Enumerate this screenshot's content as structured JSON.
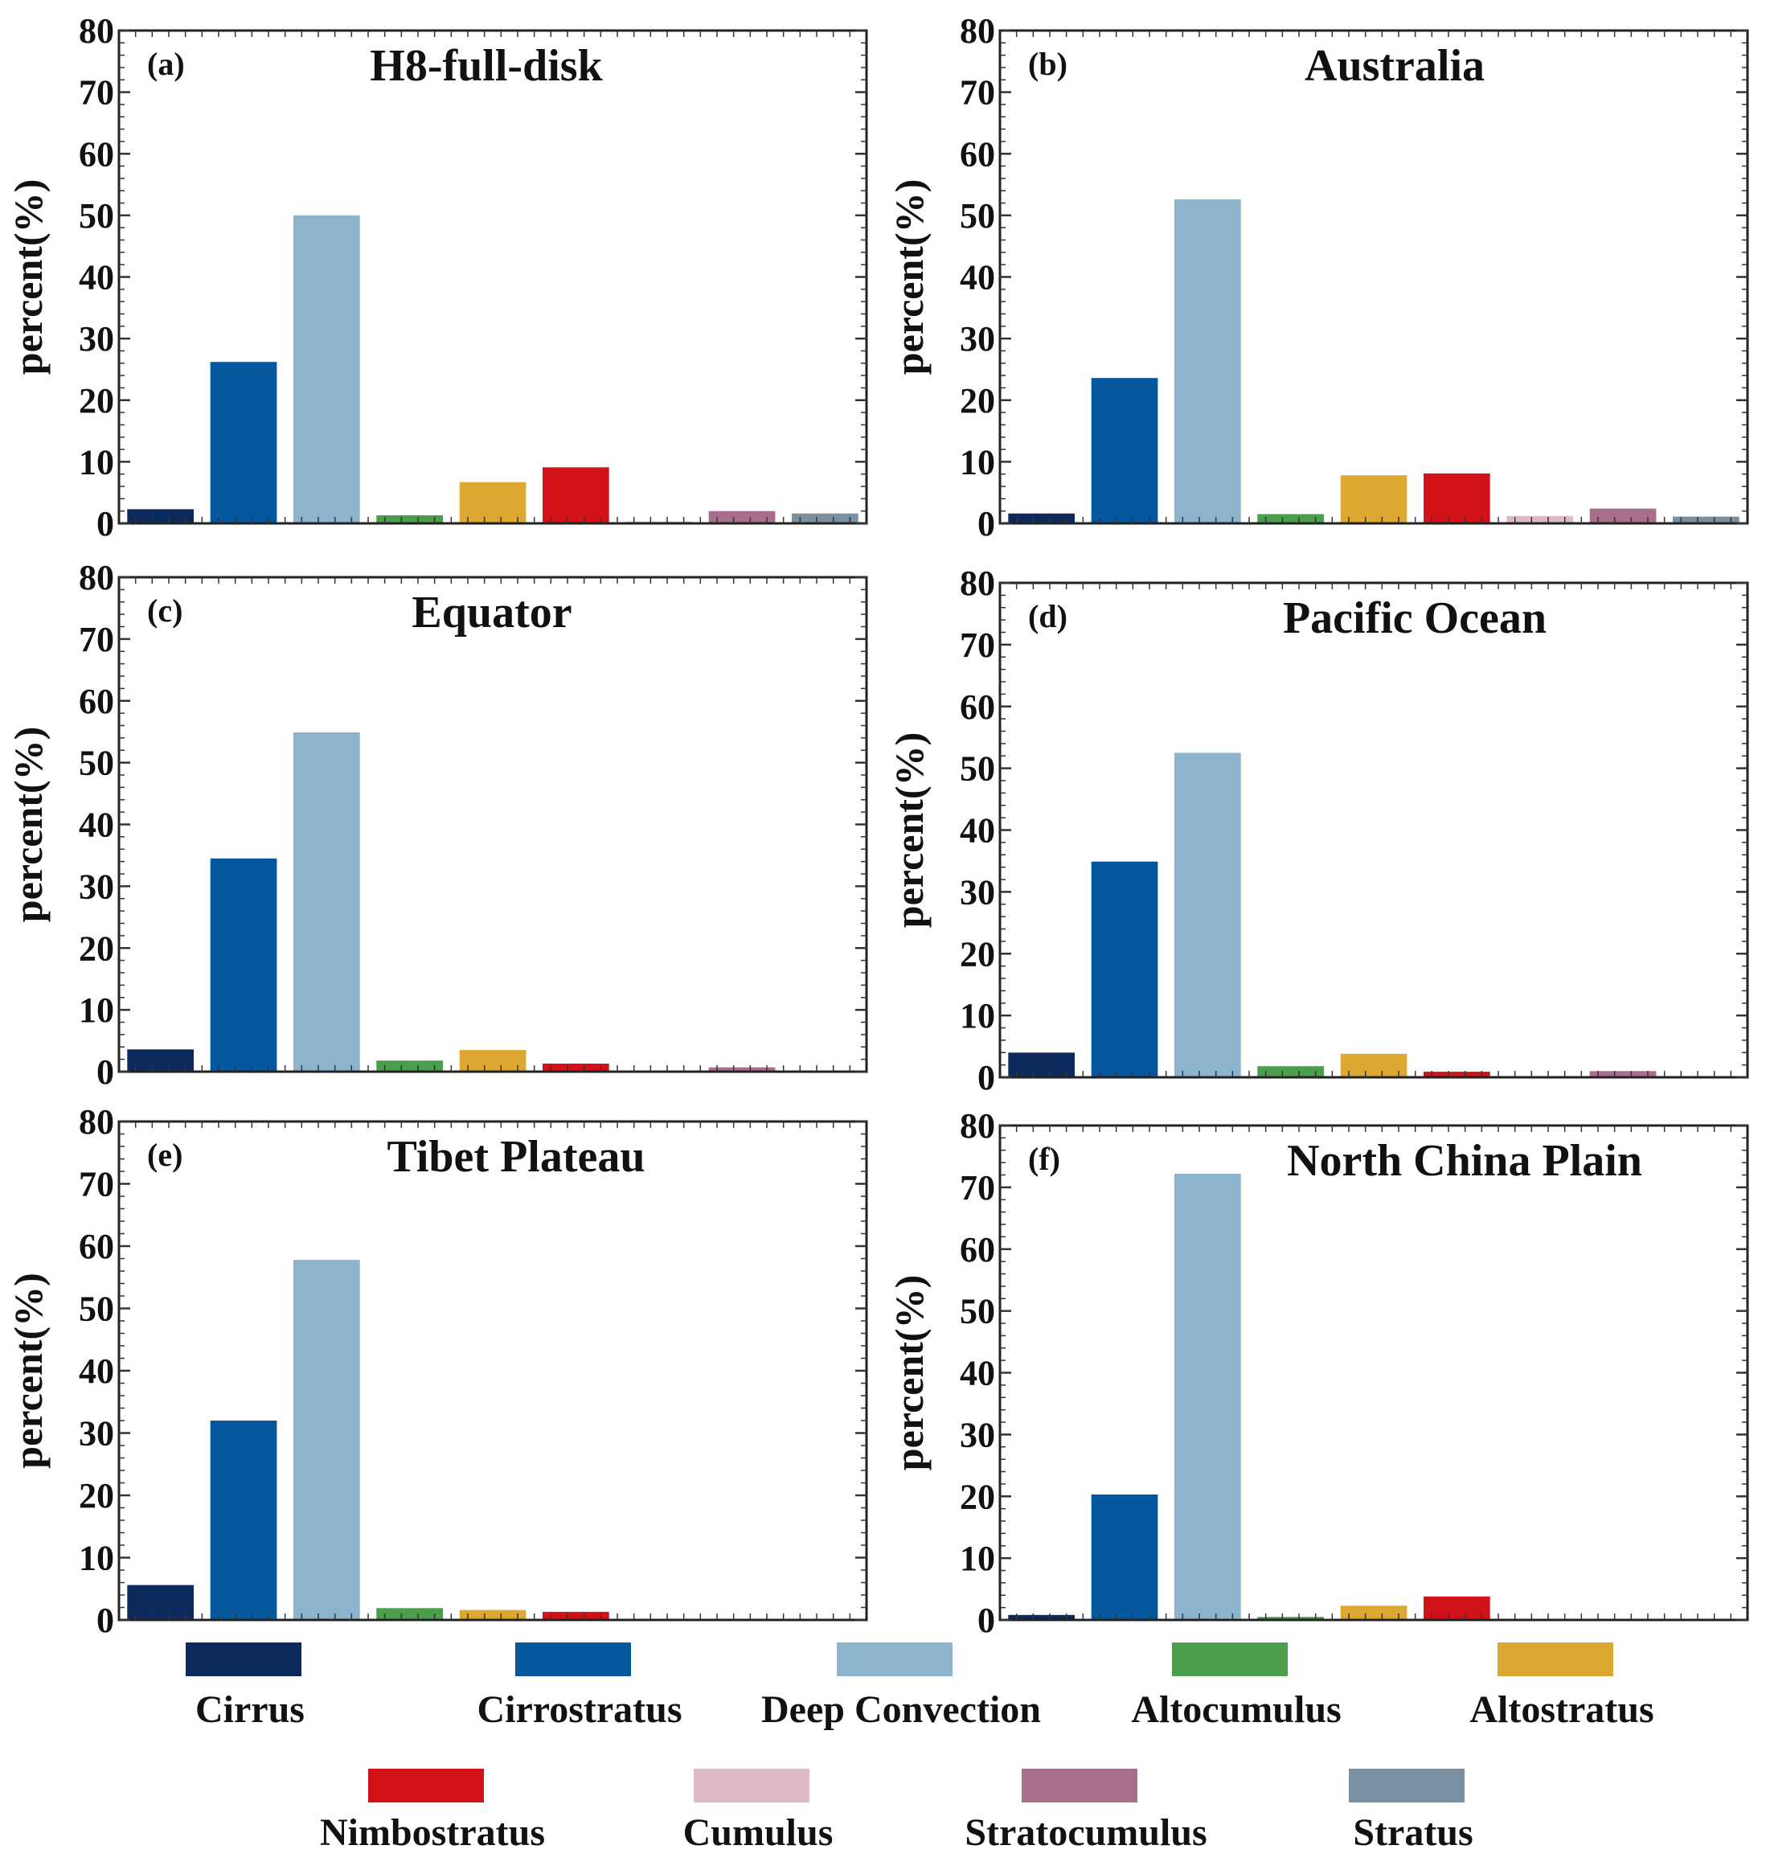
{
  "chart_data": [
    {
      "type": "bar",
      "panel_label": "(a)",
      "title": "H8-full-disk",
      "ylabel": "percent(%)",
      "xlabel": "",
      "ylim": [
        0,
        80
      ],
      "yticks": [
        "0",
        "10",
        "20",
        "30",
        "40",
        "50",
        "60",
        "70",
        "80"
      ],
      "categories": [
        "Cirrus",
        "Cirrostratus",
        "Deep Convection",
        "Altocumulus",
        "Altostratus",
        "Nimbostratus",
        "Cumulus",
        "Stratocumulus",
        "Stratus"
      ],
      "values": [
        2.3,
        26.2,
        50.0,
        1.3,
        6.7,
        9.1,
        0.3,
        2.0,
        1.6
      ]
    },
    {
      "type": "bar",
      "panel_label": "(b)",
      "title": "Australia",
      "ylabel": "percent(%)",
      "xlabel": "",
      "ylim": [
        0,
        80
      ],
      "yticks": [
        "0",
        "10",
        "20",
        "30",
        "40",
        "50",
        "60",
        "70",
        "80"
      ],
      "categories": [
        "Cirrus",
        "Cirrostratus",
        "Deep Convection",
        "Altocumulus",
        "Altostratus",
        "Nimbostratus",
        "Cumulus",
        "Stratocumulus",
        "Stratus"
      ],
      "values": [
        1.6,
        23.6,
        52.6,
        1.5,
        7.8,
        8.1,
        1.2,
        2.4,
        1.1
      ]
    },
    {
      "type": "bar",
      "panel_label": "(c)",
      "title": "Equator",
      "ylabel": "percent(%)",
      "xlabel": "",
      "ylim": [
        0,
        80
      ],
      "yticks": [
        "0",
        "10",
        "20",
        "30",
        "40",
        "50",
        "60",
        "70",
        "80"
      ],
      "categories": [
        "Cirrus",
        "Cirrostratus",
        "Deep Convection",
        "Altocumulus",
        "Altostratus",
        "Nimbostratus",
        "Cumulus",
        "Stratocumulus",
        "Stratus"
      ],
      "values": [
        3.6,
        34.5,
        54.9,
        1.8,
        3.5,
        1.3,
        0.2,
        0.7,
        0.1
      ]
    },
    {
      "type": "bar",
      "panel_label": "(d)",
      "title": "Pacific Ocean",
      "ylabel": "percent(%)",
      "xlabel": "",
      "ylim": [
        0,
        80
      ],
      "yticks": [
        "0",
        "10",
        "20",
        "30",
        "40",
        "50",
        "60",
        "70",
        "80"
      ],
      "categories": [
        "Cirrus",
        "Cirrostratus",
        "Deep Convection",
        "Altocumulus",
        "Altostratus",
        "Nimbostratus",
        "Cumulus",
        "Stratocumulus",
        "Stratus"
      ],
      "values": [
        4.0,
        34.9,
        52.5,
        1.8,
        3.8,
        0.9,
        0.2,
        1.0,
        0.1
      ]
    },
    {
      "type": "bar",
      "panel_label": "(e)",
      "title": "Tibet Plateau",
      "ylabel": "percent(%)",
      "xlabel": "",
      "ylim": [
        0,
        80
      ],
      "yticks": [
        "0",
        "10",
        "20",
        "30",
        "40",
        "50",
        "60",
        "70",
        "80"
      ],
      "categories": [
        "Cirrus",
        "Cirrostratus",
        "Deep Convection",
        "Altocumulus",
        "Altostratus",
        "Nimbostratus",
        "Cumulus",
        "Stratocumulus",
        "Stratus"
      ],
      "values": [
        5.6,
        32.0,
        57.8,
        1.9,
        1.6,
        1.3,
        0.0,
        0.0,
        0.0
      ]
    },
    {
      "type": "bar",
      "panel_label": "(f)",
      "title": "North China Plain",
      "ylabel": "percent(%)",
      "xlabel": "",
      "ylim": [
        0,
        80
      ],
      "yticks": [
        "0",
        "10",
        "20",
        "30",
        "40",
        "50",
        "60",
        "70",
        "80"
      ],
      "categories": [
        "Cirrus",
        "Cirrostratus",
        "Deep Convection",
        "Altocumulus",
        "Altostratus",
        "Nimbostratus",
        "Cumulus",
        "Stratocumulus",
        "Stratus"
      ],
      "values": [
        0.8,
        20.3,
        72.2,
        0.5,
        2.3,
        3.8,
        0.0,
        0.0,
        0.0
      ]
    }
  ],
  "legend": [
    {
      "label": "Cirrus",
      "color": "#0c2a5c"
    },
    {
      "label": "Cirrostratus",
      "color": "#05589e"
    },
    {
      "label": "Deep Convection",
      "color": "#8cb4cd"
    },
    {
      "label": "Altocumulus",
      "color": "#4a9e4c"
    },
    {
      "label": "Altostratus",
      "color": "#dca832"
    },
    {
      "label": "Nimbostratus",
      "color": "#d11218"
    },
    {
      "label": "Cumulus",
      "color": "#dcbac8"
    },
    {
      "label": "Stratocumulus",
      "color": "#a86e8c"
    },
    {
      "label": "Stratus",
      "color": "#7a8fa0"
    }
  ]
}
